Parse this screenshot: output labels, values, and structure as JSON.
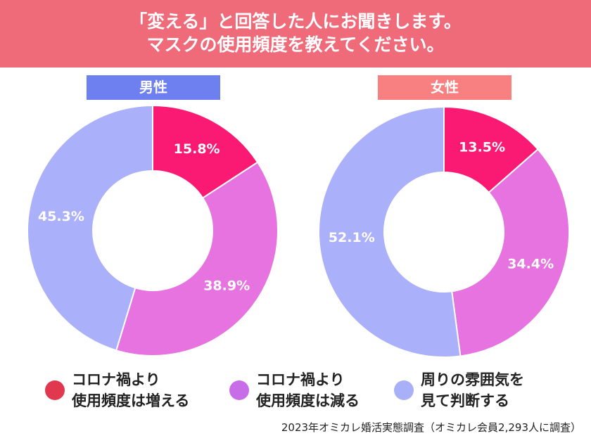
{
  "header": {
    "title": "「変える」と回答した人にお聞きします。\nマスクの使用頻度を教えてください。",
    "color": "#f06b7a"
  },
  "chart_data": [
    {
      "type": "pie",
      "title": "男性",
      "title_color": "#6e7ff0",
      "values": [
        15.8,
        38.9,
        45.3
      ],
      "value_labels": [
        "15.8%",
        "38.9%",
        "45.3%"
      ],
      "colors": [
        "#fb1a73",
        "#e673e0",
        "#aab0fa"
      ]
    },
    {
      "type": "pie",
      "title": "女性",
      "title_color": "#f88080",
      "values": [
        13.5,
        34.4,
        52.1
      ],
      "value_labels": [
        "13.5%",
        "34.4%",
        "52.1%"
      ],
      "colors": [
        "#fb1a73",
        "#e673e0",
        "#aab0fa"
      ]
    }
  ],
  "legend": {
    "items": [
      {
        "label": "コロナ禍より\n使用頻度は増える",
        "color": "#e0384f"
      },
      {
        "label": "コロナ禍より\n使用頻度は減る",
        "color": "#c86de8"
      },
      {
        "label": "周りの雰囲気を\n見て判断する",
        "color": "#a8b0f8"
      }
    ]
  },
  "source": "2023年オミカレ婚活実態調査（オミカレ会員2,293人に調査）"
}
